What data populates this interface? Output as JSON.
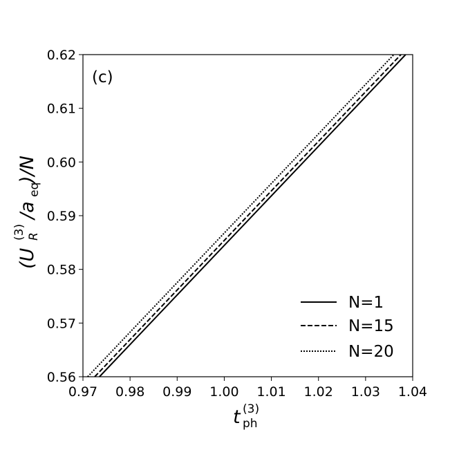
{
  "chart_data": {
    "type": "line",
    "panel_label": "(c)",
    "xlabel": {
      "base": "t",
      "sup": "(3)",
      "sub": "ph"
    },
    "ylabel": {
      "open": "(U",
      "sup": "(3)",
      "sub": "R",
      "mid": "/a",
      "sub2": "eq",
      "close": ")/N"
    },
    "xlim": [
      0.97,
      1.04
    ],
    "ylim": [
      0.56,
      0.62
    ],
    "xticks": [
      0.97,
      0.98,
      0.99,
      1.0,
      1.01,
      1.02,
      1.03,
      1.04
    ],
    "xtick_labels": [
      "0.97",
      "0.98",
      "0.99",
      "1.00",
      "1.01",
      "1.02",
      "1.03",
      "1.04"
    ],
    "yticks": [
      0.56,
      0.57,
      0.58,
      0.59,
      0.6,
      0.61,
      0.62
    ],
    "ytick_labels": [
      "0.56",
      "0.57",
      "0.58",
      "0.59",
      "0.60",
      "0.61",
      "0.62"
    ],
    "legend_position": "bottom-right",
    "grid": false,
    "series": [
      {
        "name": "N=1",
        "style": "solid",
        "x": [
          0.9735,
          1.0385
        ],
        "y": [
          0.56,
          0.62
        ]
      },
      {
        "name": "N=15",
        "style": "dashed",
        "x": [
          0.9725,
          1.0375
        ],
        "y": [
          0.56,
          0.62
        ]
      },
      {
        "name": "N=20",
        "style": "dotted",
        "x": [
          0.971,
          1.036
        ],
        "y": [
          0.56,
          0.62
        ]
      }
    ]
  }
}
